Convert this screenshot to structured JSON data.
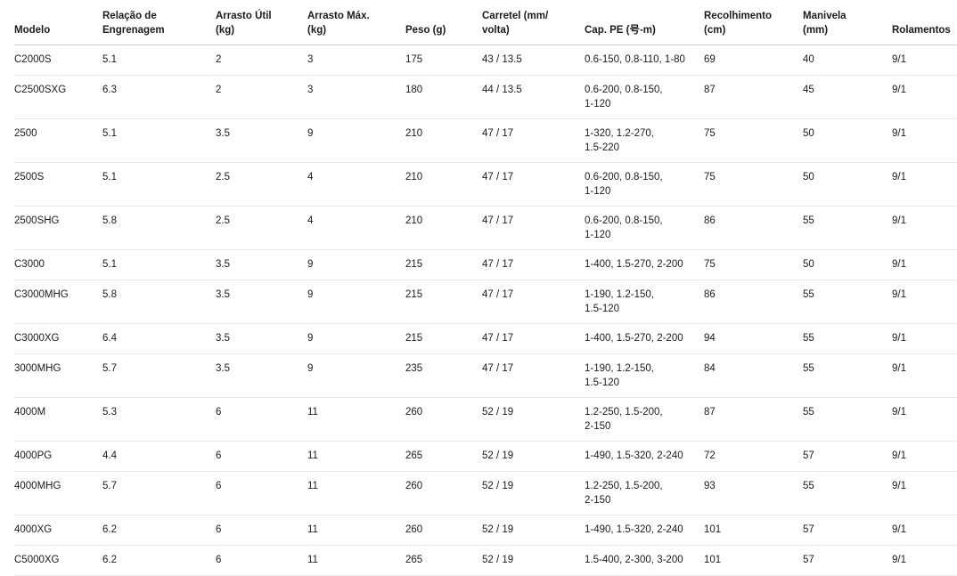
{
  "colors": {
    "background": "#ffffff",
    "text": "#1b1b1b",
    "header_border": "#cccccc",
    "row_border": "#e9e9e9"
  },
  "table": {
    "columns": [
      {
        "label": "Modelo"
      },
      {
        "label": "Relação de\nEngrenagem"
      },
      {
        "label": "Arrasto Útil\n(kg)"
      },
      {
        "label": "Arrasto Máx.\n(kg)"
      },
      {
        "label": "Peso (g)"
      },
      {
        "label": "Carretel (mm/\nvolta)"
      },
      {
        "label": "Cap. PE (号-m)"
      },
      {
        "label": "Recolhimento\n(cm)"
      },
      {
        "label": "Manivela\n(mm)"
      },
      {
        "label": "Rolamentos"
      }
    ],
    "rows": [
      {
        "cells": [
          "C2000S",
          "5.1",
          "2",
          "3",
          "175",
          "43 / 13.5",
          "0.6-150, 0.8-110, 1-80",
          "69",
          "40",
          "9/1"
        ]
      },
      {
        "cells": [
          "C2500SXG",
          "6.3",
          "2",
          "3",
          "180",
          "44 / 13.5",
          "0.6-200, 0.8-150,\n1-120",
          "87",
          "45",
          "9/1"
        ]
      },
      {
        "cells": [
          "2500",
          "5.1",
          "3.5",
          "9",
          "210",
          "47 / 17",
          "1-320, 1.2-270,\n1.5-220",
          "75",
          "50",
          "9/1"
        ]
      },
      {
        "cells": [
          "2500S",
          "5.1",
          "2.5",
          "4",
          "210",
          "47 / 17",
          "0.6-200, 0.8-150,\n1-120",
          "75",
          "50",
          "9/1"
        ]
      },
      {
        "cells": [
          "2500SHG",
          "5.8",
          "2.5",
          "4",
          "210",
          "47 / 17",
          "0.6-200, 0.8-150,\n1-120",
          "86",
          "55",
          "9/1"
        ]
      },
      {
        "cells": [
          "C3000",
          "5.1",
          "3.5",
          "9",
          "215",
          "47 / 17",
          "1-400, 1.5-270, 2-200",
          "75",
          "50",
          "9/1"
        ]
      },
      {
        "cells": [
          "C3000MHG",
          "5.8",
          "3.5",
          "9",
          "215",
          "47 / 17",
          "1-190, 1.2-150,\n1.5-120",
          "86",
          "55",
          "9/1"
        ]
      },
      {
        "cells": [
          "C3000XG",
          "6.4",
          "3.5",
          "9",
          "215",
          "47 / 17",
          "1-400, 1.5-270, 2-200",
          "94",
          "55",
          "9/1"
        ]
      },
      {
        "cells": [
          "3000MHG",
          "5.7",
          "3.5",
          "9",
          "235",
          "47 / 17",
          "1-190, 1.2-150,\n1.5-120",
          "84",
          "55",
          "9/1"
        ]
      },
      {
        "cells": [
          "4000M",
          "5.3",
          "6",
          "11",
          "260",
          "52 / 19",
          "1.2-250, 1.5-200,\n2-150",
          "87",
          "55",
          "9/1"
        ]
      },
      {
        "cells": [
          "4000PG",
          "4.4",
          "6",
          "11",
          "265",
          "52 / 19",
          "1-490, 1.5-320, 2-240",
          "72",
          "57",
          "9/1"
        ]
      },
      {
        "cells": [
          "4000MHG",
          "5.7",
          "6",
          "11",
          "260",
          "52 / 19",
          "1.2-250, 1.5-200,\n2-150",
          "93",
          "55",
          "9/1"
        ]
      },
      {
        "cells": [
          "4000XG",
          "6.2",
          "6",
          "11",
          "260",
          "52 / 19",
          "1-490, 1.5-320, 2-240",
          "101",
          "57",
          "9/1"
        ]
      },
      {
        "cells": [
          "C5000XG",
          "6.2",
          "6",
          "11",
          "265",
          "52 / 19",
          "1.5-400, 2-300, 3-200",
          "101",
          "57",
          "9/1"
        ]
      }
    ]
  }
}
